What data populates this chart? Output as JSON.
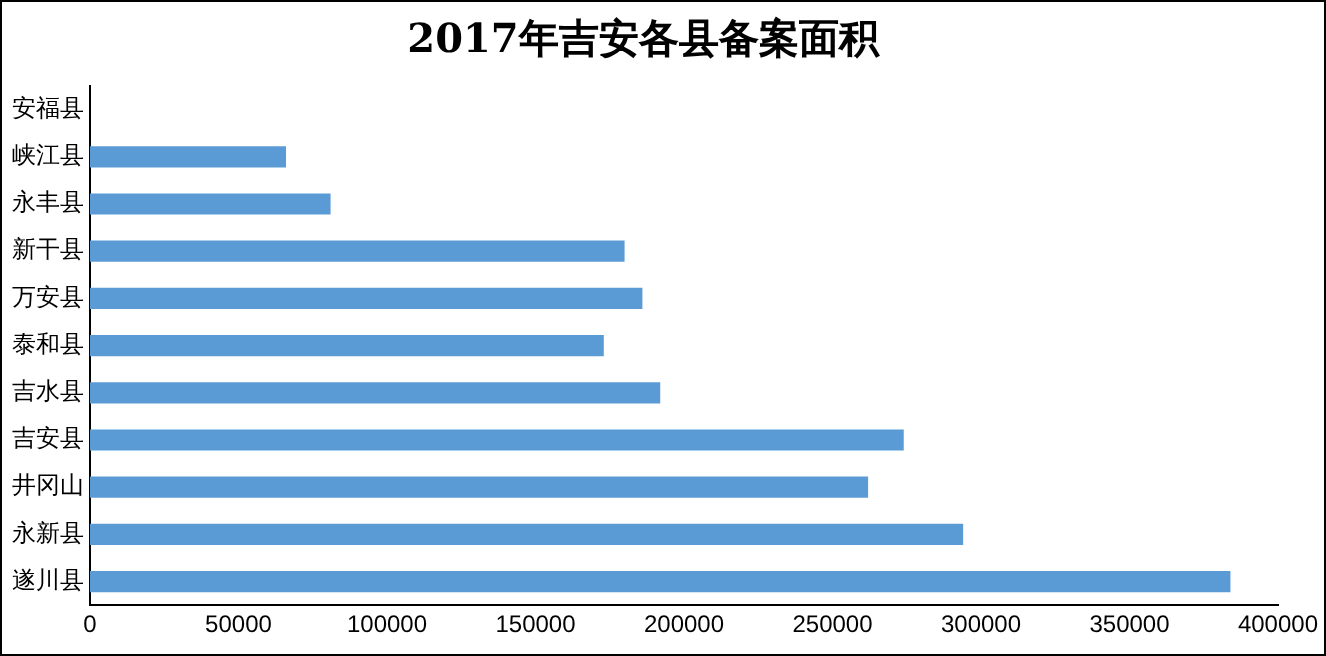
{
  "chart_data": {
    "type": "bar",
    "orientation": "horizontal",
    "title": "2017年吉安各县备案面积",
    "categories": [
      "安福县",
      "峡江县",
      "永丰县",
      "新干县",
      "万安县",
      "泰和县",
      "吉水县",
      "吉安县",
      "井冈山",
      "永新县",
      "遂川县"
    ],
    "values": [
      null,
      66000,
      81000,
      180000,
      186000,
      173000,
      192000,
      274000,
      262000,
      294000,
      384000
    ],
    "color": "#5b9bd5",
    "xlim": [
      0,
      400000
    ],
    "xticks": [
      0,
      50000,
      100000,
      150000,
      200000,
      250000,
      300000,
      350000,
      400000
    ],
    "grid": false,
    "legend": false
  }
}
